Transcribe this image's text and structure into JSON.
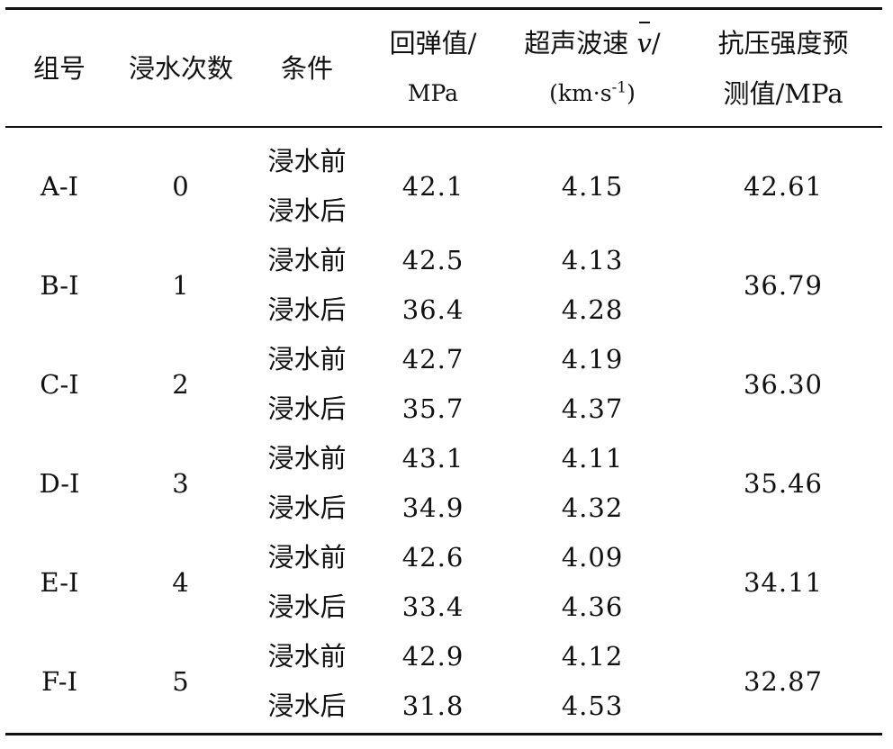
{
  "headers": {
    "group": "组号",
    "times": "浸水次数",
    "condition": "条件",
    "rebound_l1": "回弹值/",
    "rebound_l2": "MPa",
    "velocity_l1": "超声波速",
    "velocity_sym": "v",
    "velocity_slash": "/",
    "velocity_l2_open": "(km·s",
    "velocity_l2_sup": "-1",
    "velocity_l2_close": ")",
    "pred_l1": "抗压强度预",
    "pred_l2": "测值/MPa"
  },
  "groups": [
    {
      "id": "A-Ⅰ",
      "times": "0",
      "predicted": "42.61",
      "rows": [
        {
          "condition": "浸水前",
          "rebound": "42.1",
          "velocity": "4.15"
        },
        {
          "condition": "浸水后",
          "rebound": "",
          "velocity": ""
        }
      ]
    },
    {
      "id": "B-Ⅰ",
      "times": "1",
      "predicted": "36.79",
      "rows": [
        {
          "condition": "浸水前",
          "rebound": "42.5",
          "velocity": "4.13"
        },
        {
          "condition": "浸水后",
          "rebound": "36.4",
          "velocity": "4.28"
        }
      ]
    },
    {
      "id": "C-Ⅰ",
      "times": "2",
      "predicted": "36.30",
      "rows": [
        {
          "condition": "浸水前",
          "rebound": "42.7",
          "velocity": "4.19"
        },
        {
          "condition": "浸水后",
          "rebound": "35.7",
          "velocity": "4.37"
        }
      ]
    },
    {
      "id": "D-Ⅰ",
      "times": "3",
      "predicted": "35.46",
      "rows": [
        {
          "condition": "浸水前",
          "rebound": "43.1",
          "velocity": "4.11"
        },
        {
          "condition": "浸水后",
          "rebound": "34.9",
          "velocity": "4.32"
        }
      ]
    },
    {
      "id": "E-Ⅰ",
      "times": "4",
      "predicted": "34.11",
      "rows": [
        {
          "condition": "浸水前",
          "rebound": "42.6",
          "velocity": "4.09"
        },
        {
          "condition": "浸水后",
          "rebound": "33.4",
          "velocity": "4.36"
        }
      ]
    },
    {
      "id": "F-Ⅰ",
      "times": "5",
      "predicted": "32.87",
      "rows": [
        {
          "condition": "浸水前",
          "rebound": "42.9",
          "velocity": "4.12"
        },
        {
          "condition": "浸水后",
          "rebound": "31.8",
          "velocity": "4.53"
        }
      ]
    }
  ]
}
